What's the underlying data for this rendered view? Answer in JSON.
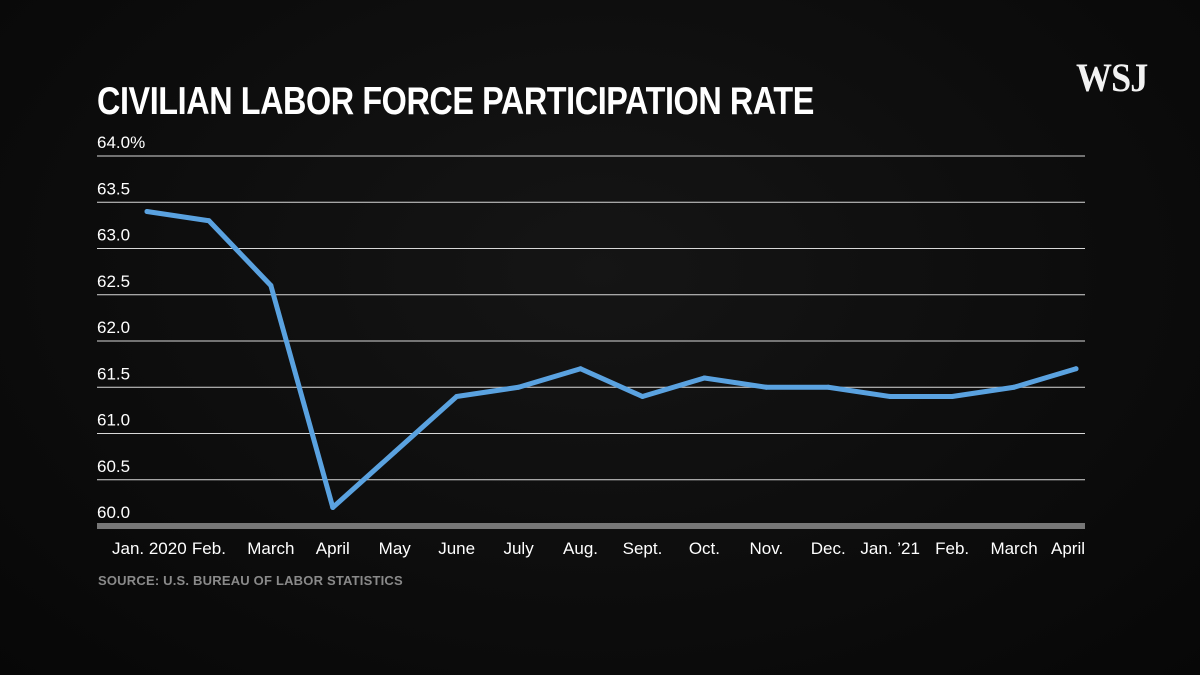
{
  "brand": {
    "logo_text": "WSJ"
  },
  "title": "CIVILIAN LABOR FORCE PARTICIPATION RATE",
  "source": "SOURCE: U.S. BUREAU OF LABOR STATISTICS",
  "colors": {
    "background": "#0d0d0d",
    "line": "#5aa2e0",
    "grid": "#d8d8d8",
    "baseline": "#777777",
    "text": "#ffffff",
    "source_text": "#8a8a8a"
  },
  "chart_data": {
    "type": "line",
    "title": "CIVILIAN LABOR FORCE PARTICIPATION RATE",
    "xlabel": "",
    "ylabel": "",
    "categories": [
      "Jan. 2020",
      "Feb.",
      "March",
      "April",
      "May",
      "June",
      "July",
      "Aug.",
      "Sept.",
      "Oct.",
      "Nov.",
      "Dec.",
      "Jan. ’21",
      "Feb.",
      "March",
      "April"
    ],
    "series": [
      {
        "values": [
          63.4,
          63.3,
          62.6,
          60.2,
          60.8,
          61.4,
          61.5,
          61.7,
          61.4,
          61.6,
          61.5,
          61.5,
          61.4,
          61.4,
          61.5,
          61.7
        ]
      }
    ],
    "ylim": [
      60.0,
      64.0
    ],
    "yticks": [
      64.0,
      63.5,
      63.0,
      62.5,
      62.0,
      61.5,
      61.0,
      60.5,
      60.0
    ],
    "ytick_labels": [
      "64.0%",
      "63.5",
      "63.0",
      "62.5",
      "62.0",
      "61.5",
      "61.0",
      "60.5",
      "60.0"
    ],
    "grid": true,
    "legend": "none"
  }
}
